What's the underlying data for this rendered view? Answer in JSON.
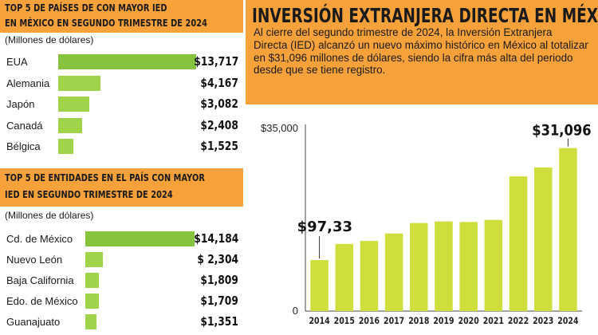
{
  "top_countries": {
    "title_line1": "TOP 5 DE PAÍSES DE CON MAYOR IED",
    "title_line2": "EN MÉXICO EN SEGUNDO TRIMESTRE DE 2024",
    "units": "(Millones de dólares)",
    "items": [
      {
        "label": "EUA",
        "value": 13717,
        "display": "$13,717"
      },
      {
        "label": "Alemania",
        "value": 4167,
        "display": "$4,167"
      },
      {
        "label": "Japón",
        "value": 3082,
        "display": "$3,082"
      },
      {
        "label": "Canadá",
        "value": 2408,
        "display": "$2,408"
      },
      {
        "label": "Bélgica",
        "value": 1525,
        "display": "$1,525"
      }
    ]
  },
  "top_states": {
    "title_line1": "TOP 5 DE ENTIDADES EN EL PAÍS CON MAYOR",
    "title_line2": "IED EN SEGUNDO TRIMESTRE DE 2024",
    "units": "(Millones de dólares)",
    "items": [
      {
        "label": "Cd. de México",
        "value": 14184,
        "display": "$14,184"
      },
      {
        "label": "Nuevo León",
        "value": 2304,
        "display": "$ 2,304"
      },
      {
        "label": "Baja California",
        "value": 1809,
        "display": "$1,809"
      },
      {
        "label": "Edo. de México",
        "value": 1709,
        "display": "$1,709"
      },
      {
        "label": "Guanajuato",
        "value": 1351,
        "display": "$1,351"
      }
    ]
  },
  "main": {
    "title": "INVERSIÓN EXTRANJERA DIRECTA EN MÉXICO",
    "description": "Al cierre del segundo trimestre de 2024, la Inversión Extranjera Directa (IED) alcanzó un nuevo máximo histórico en México al totalizar en $31,096 millones de dólares, siendo la cifra más alta del periodo desde que se tiene registro."
  },
  "colors": {
    "orange": "#f7a13a",
    "bar_green": "#9fd34a",
    "lead_green": "#86c43e",
    "column_green": "#cede3c"
  },
  "chart_data": {
    "type": "bar",
    "categories": [
      "2014",
      "2015",
      "2016",
      "2017",
      "2018",
      "2019",
      "2020",
      "2021",
      "2022",
      "2023",
      "2024"
    ],
    "values": [
      9733,
      12800,
      13400,
      14800,
      16800,
      17100,
      17000,
      17400,
      25700,
      27400,
      31096
    ],
    "y_tick_labels": [
      "$35,000",
      "0"
    ],
    "ylim": [
      0,
      35000
    ],
    "annotations": [
      {
        "category": "2014",
        "text": "$97,33"
      },
      {
        "category": "2024",
        "text": "$31,096"
      }
    ],
    "grid": false
  }
}
